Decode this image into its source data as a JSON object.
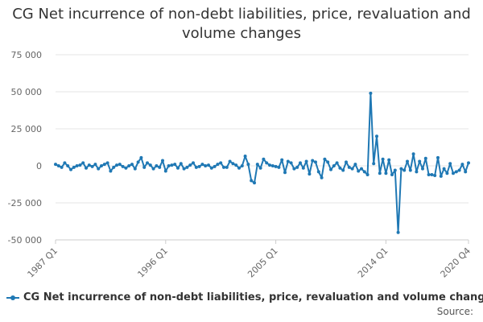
{
  "title": "CG Net incurrence of non-debt liabilities, price, revaluation and volume changes",
  "source_label": "Source:",
  "colors": {
    "series": "#1f78b4",
    "grid": "#e6e6e6",
    "axis_text": "#666666"
  },
  "chart_data": {
    "type": "line",
    "title": "CG Net incurrence of non-debt liabilities, price, revaluation and volume changes",
    "xlabel": "",
    "ylabel": "",
    "ylim": [
      -50000,
      75000
    ],
    "yticks": [
      -50000,
      -25000,
      0,
      25000,
      50000,
      75000
    ],
    "ytick_labels": [
      "-50 000",
      "-25 000",
      "0",
      "25 000",
      "50 000",
      "75 000"
    ],
    "x_start": "1987 Q1",
    "x_end": "2020 Q4",
    "xticks": [
      {
        "label": "1987 Q1",
        "index": 0
      },
      {
        "label": "1996 Q1",
        "index": 36
      },
      {
        "label": "2005 Q1",
        "index": 72
      },
      {
        "label": "2014 Q1",
        "index": 108
      },
      {
        "label": "2020 Q4",
        "index": 135
      }
    ],
    "grid": true,
    "legend_position": "bottom",
    "series": [
      {
        "name": "CG Net incurrence of non-debt liabilities, price, revaluation and volume changes",
        "values": [
          1000,
          0,
          -1000,
          2000,
          0,
          -2500,
          -1000,
          0,
          500,
          2000,
          -1500,
          500,
          -500,
          1000,
          -2000,
          0,
          1000,
          2000,
          -3500,
          -1000,
          500,
          1000,
          -500,
          -1500,
          0,
          1000,
          -2000,
          2500,
          5500,
          -1000,
          2000,
          500,
          -2000,
          0,
          -1000,
          3500,
          -3500,
          0,
          500,
          1000,
          -1500,
          1500,
          -2000,
          -1000,
          500,
          2000,
          -1000,
          -500,
          1000,
          0,
          500,
          -1500,
          -500,
          1000,
          2000,
          -1000,
          -1000,
          3000,
          1500,
          500,
          -1500,
          0,
          6500,
          1000,
          -10000,
          -11500,
          1000,
          -1500,
          4500,
          2000,
          500,
          0,
          -500,
          -1000,
          4000,
          -4500,
          3000,
          2000,
          -2000,
          -1000,
          2000,
          -1500,
          3000,
          -5500,
          3500,
          2500,
          -4000,
          -8000,
          4500,
          2500,
          -2500,
          0,
          2000,
          -1500,
          -3000,
          2500,
          -1000,
          -2000,
          1000,
          -3500,
          -2000,
          -4000,
          -6000,
          49000,
          1500,
          20000,
          -5000,
          4500,
          -5000,
          4000,
          -6000,
          -3000,
          -45000,
          -2000,
          -3000,
          3000,
          -3000,
          8000,
          -4000,
          3000,
          -2000,
          5000,
          -6000,
          -6000,
          -6500,
          5500,
          -7000,
          -2000,
          -5000,
          1500,
          -5000,
          -4000,
          -3000,
          1000,
          -4000,
          2000
        ]
      }
    ]
  }
}
